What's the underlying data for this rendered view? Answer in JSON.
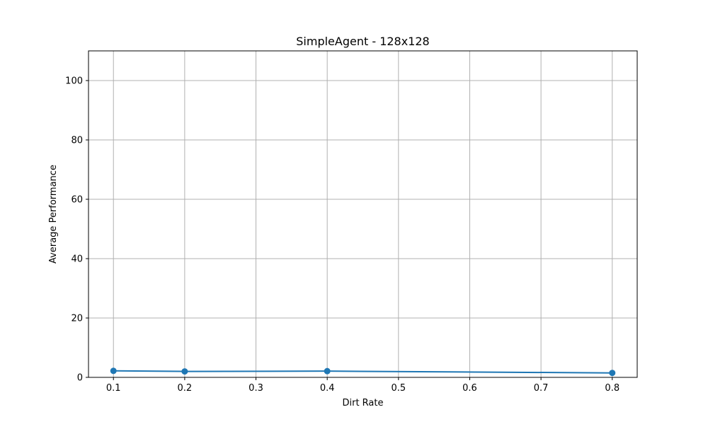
{
  "chart_data": {
    "type": "line",
    "title": "SimpleAgent - 128x128",
    "xlabel": "Dirt Rate",
    "ylabel": "Average Performance",
    "xlim": [
      0.065,
      0.835
    ],
    "ylim": [
      0,
      110
    ],
    "xticks": [
      0.1,
      0.2,
      0.3,
      0.4,
      0.5,
      0.6,
      0.7,
      0.8
    ],
    "yticks": [
      0,
      20,
      40,
      60,
      80,
      100
    ],
    "grid": true,
    "series": [
      {
        "color": "#1f77b4",
        "marker": "circle",
        "x": [
          0.1,
          0.2,
          0.4,
          0.8
        ],
        "y": [
          2.2,
          2.0,
          2.1,
          1.5
        ]
      }
    ]
  }
}
